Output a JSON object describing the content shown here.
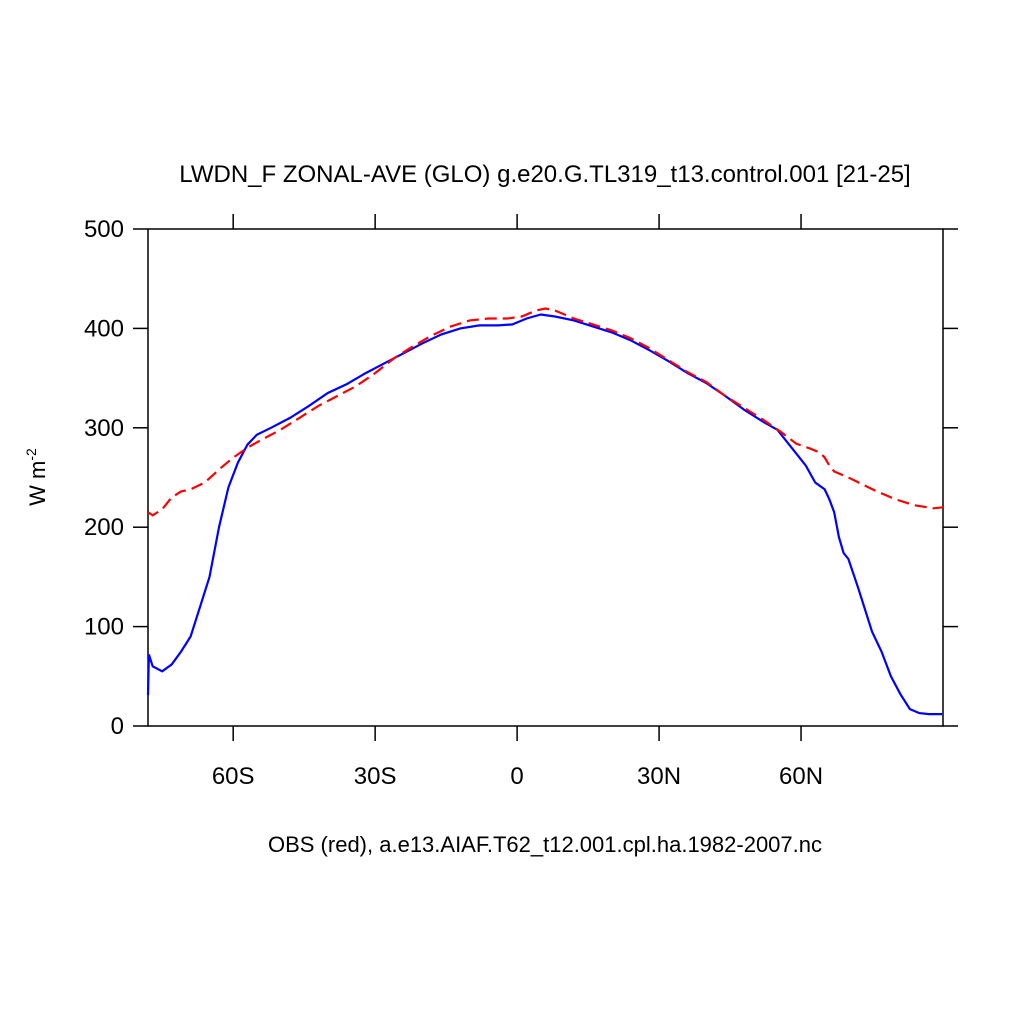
{
  "chart_data": {
    "type": "line",
    "title": "LWDN_F ZONAL-AVE (GLO) g.e20.G.TL319_t13.control.001 [21-25]",
    "x_label": "OBS (red), a.e13.AIAF.T62_t12.001.cpl.ha.1982-2007.nc",
    "y_label": "W m",
    "y_label_sup": "-2",
    "xlim": [
      -78,
      90
    ],
    "ylim": [
      0,
      500
    ],
    "xticks": [
      {
        "value": -60,
        "label": "60S"
      },
      {
        "value": -30,
        "label": "30S"
      },
      0,
      {
        "value": 30,
        "label": "30N"
      },
      {
        "value": 60,
        "label": "60N"
      }
    ],
    "yticks": [
      0,
      100,
      200,
      300,
      400,
      500
    ],
    "series": [
      {
        "color": "#0000ff",
        "dash": false,
        "x": [
          -78,
          -77.8,
          -77,
          -75,
          -73,
          -71,
          -69,
          -67,
          -65,
          -63,
          -61,
          -59,
          -57,
          -55,
          -52,
          -48,
          -44,
          -40,
          -36,
          -32,
          -28,
          -24,
          -20,
          -16,
          -12,
          -8,
          -4,
          -1,
          2,
          5,
          8,
          12,
          16,
          20,
          24,
          28,
          32,
          36,
          40,
          44,
          48,
          52,
          55,
          58,
          61,
          63,
          65,
          66,
          67,
          68,
          69,
          70,
          72,
          74,
          75,
          77,
          79,
          81,
          83,
          85,
          87,
          89.8
        ],
        "values": [
          31,
          72,
          60,
          55,
          62,
          75,
          90,
          120,
          150,
          200,
          240,
          265,
          283,
          293,
          300,
          310,
          322,
          335,
          344,
          355,
          365,
          375,
          385,
          394,
          400,
          403,
          403,
          404,
          410,
          414,
          412,
          408,
          402,
          396,
          388,
          378,
          367,
          355,
          345,
          332,
          318,
          306,
          298,
          280,
          262,
          245,
          238,
          228,
          215,
          190,
          174,
          168,
          140,
          110,
          95,
          75,
          50,
          32,
          17,
          13,
          12,
          12
        ]
      },
      {
        "color": "#ff0000",
        "dash": true,
        "x": [
          -78,
          -77,
          -75,
          -73,
          -71,
          -69,
          -66,
          -63,
          -60,
          -57,
          -54,
          -50,
          -46,
          -42,
          -38,
          -34,
          -30,
          -26,
          -22,
          -18,
          -14,
          -10,
          -6,
          -2,
          1,
          4,
          6,
          8,
          12,
          16,
          20,
          24,
          28,
          32,
          36,
          40,
          44,
          48,
          52,
          56,
          59,
          62,
          64,
          65,
          66,
          67,
          70,
          73,
          76,
          80,
          84,
          88,
          90
        ],
        "values": [
          215,
          212,
          218,
          230,
          236,
          238,
          245,
          258,
          270,
          280,
          288,
          298,
          310,
          322,
          332,
          342,
          355,
          370,
          382,
          393,
          402,
          408,
          410,
          410,
          412,
          418,
          420,
          418,
          410,
          404,
          398,
          390,
          380,
          368,
          356,
          346,
          332,
          320,
          308,
          295,
          284,
          279,
          275,
          270,
          262,
          256,
          250,
          243,
          236,
          228,
          222,
          219,
          220
        ]
      }
    ]
  }
}
